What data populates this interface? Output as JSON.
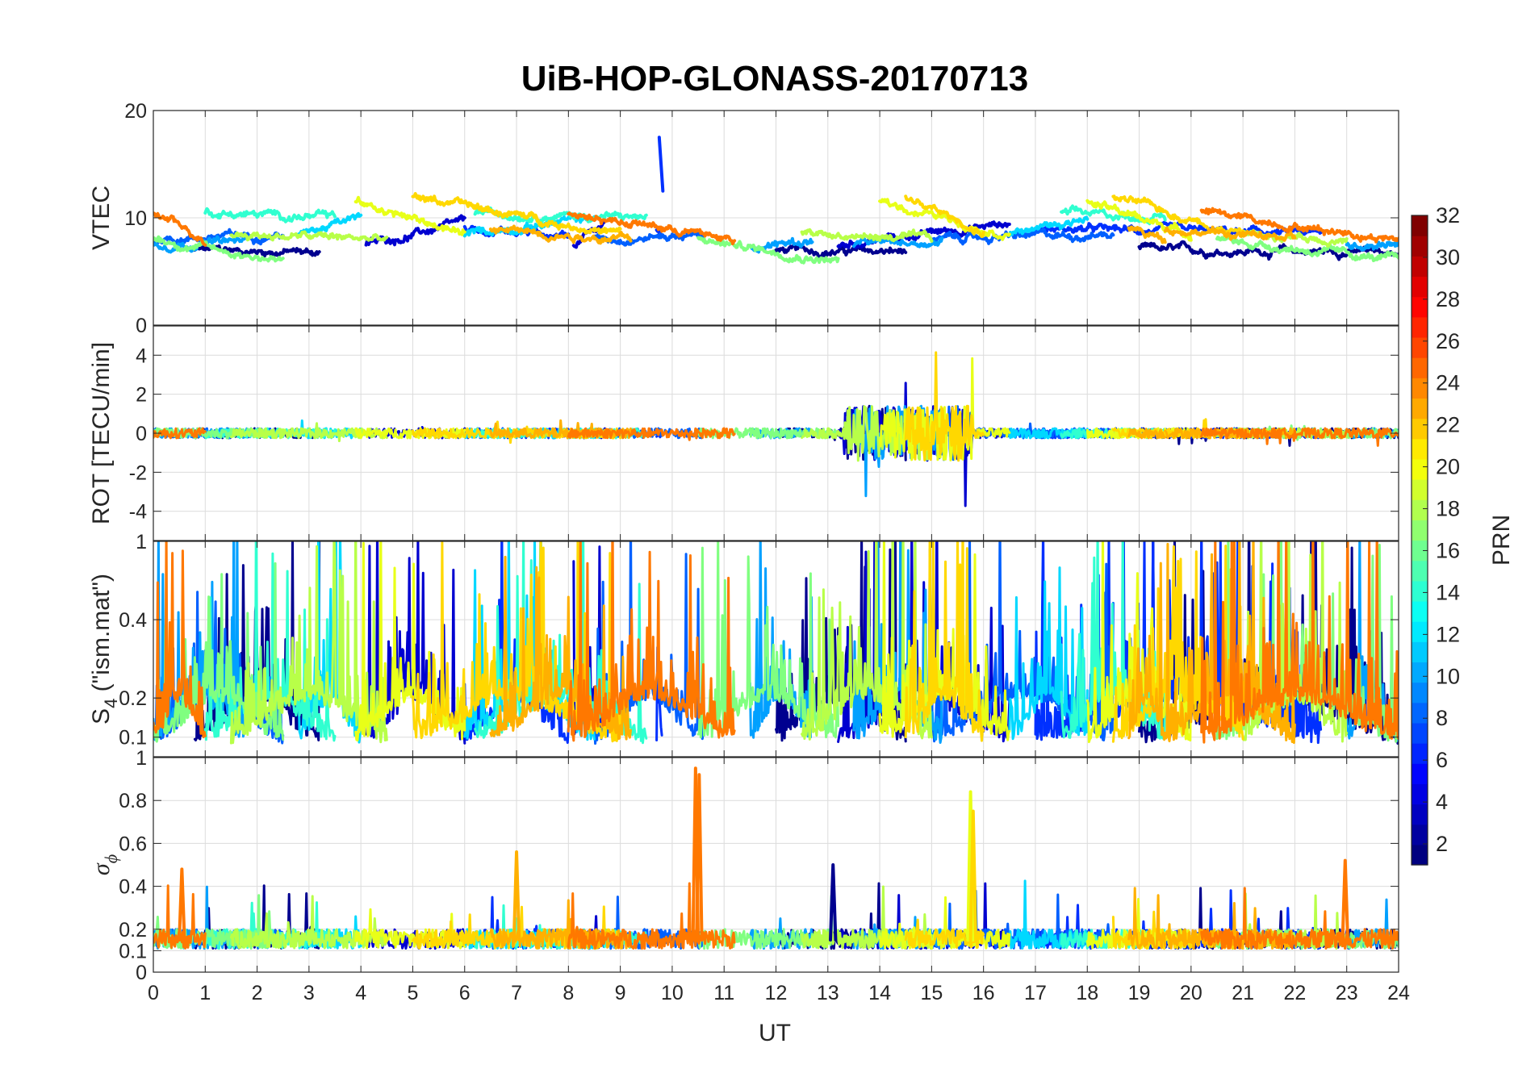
{
  "chart_data": {
    "type": "line",
    "title": "UiB-HOP-GLONASS-20170713",
    "x": {
      "label": "UT",
      "range": [
        0,
        24
      ],
      "ticks": [
        "0",
        "1",
        "2",
        "3",
        "4",
        "5",
        "6",
        "7",
        "8",
        "9",
        "10",
        "11",
        "12",
        "13",
        "14",
        "15",
        "16",
        "17",
        "18",
        "19",
        "20",
        "21",
        "22",
        "23",
        "24"
      ]
    },
    "panels": [
      {
        "id": "vtec",
        "ylabel": "VTEC",
        "ylim": [
          0,
          20
        ],
        "yticks": [
          {
            "v": 0,
            "label": "0"
          },
          {
            "v": 10,
            "label": "10"
          },
          {
            "v": 20,
            "label": "20"
          }
        ],
        "baseline": 8,
        "noise": 0.35
      },
      {
        "id": "rot",
        "ylabel": "ROT [TECU/min]",
        "ylim": [
          -5.5,
          5.5
        ],
        "yticks": [
          {
            "v": -4,
            "label": "-4"
          },
          {
            "v": -2,
            "label": "-2"
          },
          {
            "v": 0,
            "label": "0"
          },
          {
            "v": 2,
            "label": "2"
          },
          {
            "v": 4,
            "label": "4"
          }
        ],
        "baseline": 0,
        "noise": 0.25
      },
      {
        "id": "s4",
        "ylabel_main": "S",
        "ylabel_sub": "4",
        "ylabel_tail": " (\"ism.mat\")",
        "ylim": [
          0.05,
          0.6
        ],
        "yticks": [
          {
            "v": 0.1,
            "label": "0.1"
          },
          {
            "v": 0.2,
            "label": "0.2"
          },
          {
            "v": 0.4,
            "label": "0.4"
          }
        ],
        "top_label": "1",
        "baseline": 0.09,
        "noise": 0.1
      },
      {
        "id": "sigphi",
        "ylabel_main": "σ",
        "ylabel_sub": "ϕ",
        "ylim": [
          0,
          1
        ],
        "yticks": [
          {
            "v": 0,
            "label": "0"
          },
          {
            "v": 0.1,
            "label": "0.1"
          },
          {
            "v": 0.2,
            "label": "0.2"
          },
          {
            "v": 0.4,
            "label": "0.4"
          },
          {
            "v": 0.6,
            "label": "0.6"
          },
          {
            "v": 0.8,
            "label": "0.8"
          },
          {
            "v": 1,
            "label": "1"
          }
        ],
        "baseline": 0.15,
        "noise": 0.05
      }
    ],
    "colorbar": {
      "label": "PRN",
      "range": [
        1,
        32
      ],
      "ticks": [
        "2",
        "4",
        "6",
        "8",
        "10",
        "12",
        "14",
        "16",
        "18",
        "20",
        "22",
        "24",
        "26",
        "28",
        "30",
        "32"
      ],
      "colormap": "jet",
      "colors": [
        "#00008f",
        "#0000ff",
        "#0080ff",
        "#00ffff",
        "#80ff80",
        "#ffff00",
        "#ff8000",
        "#ff0000",
        "#800000"
      ]
    },
    "series": [
      {
        "prn": 1,
        "color": "#00008f",
        "segments": [
          [
            0.8,
            3.2
          ],
          [
            12.0,
            14.5
          ],
          [
            19.0,
            24.0
          ]
        ],
        "vtec": 7.0,
        "trend": -0.2
      },
      {
        "prn": 3,
        "color": "#0000d0",
        "segments": [
          [
            4.1,
            6.0
          ],
          [
            8.1,
            8.7
          ],
          [
            13.2,
            16.5
          ]
        ],
        "vtec": 7.5,
        "trend": 2.0
      },
      {
        "prn": 5,
        "color": "#0030ff",
        "segments": [
          [
            6.0,
            8.0
          ],
          [
            9.7,
            9.8
          ],
          [
            17.0,
            22.5
          ]
        ],
        "vtec": 9.0,
        "trend": -0.5
      },
      {
        "prn": 7,
        "color": "#0060ff",
        "segments": [
          [
            0.0,
            2.5
          ],
          [
            8.5,
            10.6
          ],
          [
            15.0,
            18.5
          ]
        ],
        "vtec": 8.0,
        "trend": 0.5
      },
      {
        "prn": 9,
        "color": "#00a0ff",
        "segments": [
          [
            0.0,
            1.8
          ],
          [
            11.5,
            12.7
          ],
          [
            13.5,
            15.2
          ],
          [
            23.0,
            24.0
          ]
        ],
        "vtec": 7.5,
        "trend": 0.3
      },
      {
        "prn": 11,
        "color": "#00d8ff",
        "segments": [
          [
            2.8,
            4.0
          ],
          [
            6.0,
            8.5
          ],
          [
            16.5,
            18.0
          ]
        ],
        "vtec": 8.5,
        "trend": 1.5
      },
      {
        "prn": 13,
        "color": "#30ffd0",
        "segments": [
          [
            1.0,
            3.5
          ],
          [
            6.2,
            9.5
          ],
          [
            17.5,
            19.5
          ]
        ],
        "vtec": 10.5,
        "trend": -0.5
      },
      {
        "prn": 15,
        "color": "#80ff80",
        "segments": [
          [
            0.0,
            2.5
          ],
          [
            10.5,
            13.2
          ],
          [
            20.5,
            24.0
          ]
        ],
        "vtec": 8.0,
        "trend": -2.0
      },
      {
        "prn": 17,
        "color": "#b8ff48",
        "segments": [
          [
            1.5,
            4.5
          ],
          [
            12.5,
            15.0
          ],
          [
            21.0,
            23.0
          ]
        ],
        "vtec": 8.5,
        "trend": -0.5
      },
      {
        "prn": 19,
        "color": "#e8ff18",
        "segments": [
          [
            3.9,
            6.0
          ],
          [
            14.0,
            16.5
          ],
          [
            18.0,
            20.0
          ]
        ],
        "vtec": 11.5,
        "trend": -3.0
      },
      {
        "prn": 21,
        "color": "#ffd800",
        "segments": [
          [
            5.0,
            9.0
          ],
          [
            14.5,
            16.0
          ],
          [
            18.5,
            21.0
          ]
        ],
        "vtec": 12.0,
        "trend": -3.5
      },
      {
        "prn": 22,
        "color": "#ffb000",
        "segments": [
          [
            6.5,
            9.2
          ],
          [
            18.8,
            19.5
          ],
          [
            19.5,
            22.0
          ]
        ],
        "vtec": 9.0,
        "trend": -1.0
      },
      {
        "prn": 24,
        "color": "#ff7800",
        "segments": [
          [
            0.0,
            1.0
          ],
          [
            8.0,
            11.2
          ],
          [
            20.2,
            24.0
          ]
        ],
        "vtec": 10.5,
        "trend": -2.5
      }
    ]
  }
}
